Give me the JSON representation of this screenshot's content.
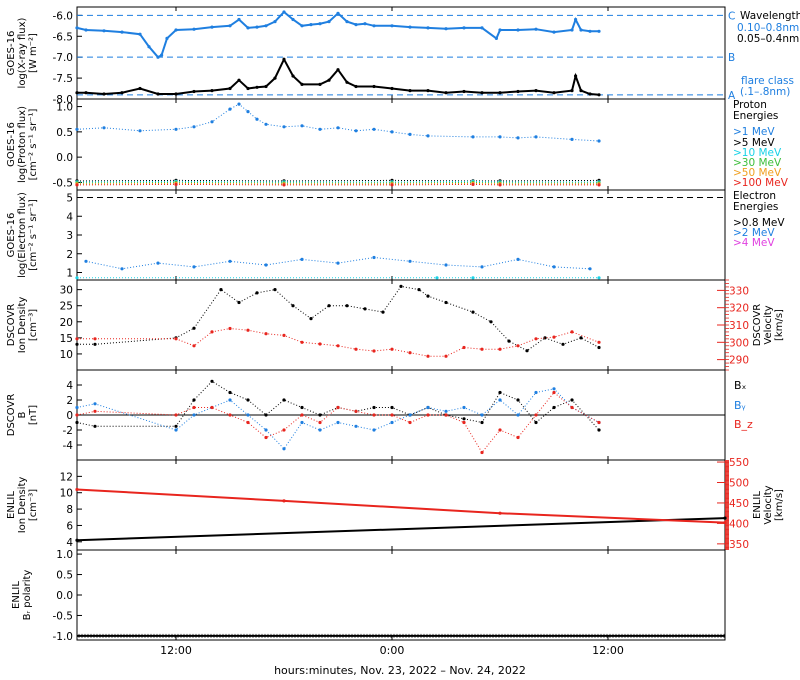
{
  "colors": {
    "black": "#000000",
    "blue": "#1f7fe0",
    "cyan": "#19d2e6",
    "green": "#3cbf3c",
    "orange": "#f0a020",
    "red": "#e8251e",
    "magenta": "#e040e0"
  },
  "x_axis": {
    "title": "hours:minutes, Nov. 23, 2022 – Nov. 24, 2022",
    "xlim": [
      6.5,
      42.5
    ],
    "ticks": [
      {
        "label": "12:00",
        "hour": 12
      },
      {
        "label": "0:00",
        "hour": 24
      },
      {
        "label": "12:00",
        "hour": 36
      }
    ]
  },
  "chart_data": [
    {
      "type": "line",
      "id": "xray",
      "ylabel": [
        "GOES-16",
        "log(X-ray flux)",
        "[W m⁻²]"
      ],
      "ylim": [
        -8.0,
        -5.8
      ],
      "yticks": [
        "-6.0",
        "-6.5",
        "-7.0",
        "-7.5",
        "-8.0"
      ],
      "ytick_values": [
        -6.0,
        -6.5,
        -7.0,
        -7.5,
        -8.0
      ],
      "flare_levels": [
        {
          "label": "C",
          "value": -6.0
        },
        {
          "label": "B",
          "value": -7.0
        },
        {
          "label": "A",
          "value": -7.9
        }
      ],
      "legend": {
        "title": "Wavelength",
        "entries": [
          "0.10–0.8nm",
          "0.05–0.4nm"
        ],
        "note": [
          "flare class",
          "(.1–.8nm)"
        ]
      },
      "series": [
        {
          "name": "0.10–0.8nm",
          "color": "blue",
          "x": [
            6.5,
            7.0,
            8.0,
            9.0,
            10.0,
            10.5,
            11.0,
            11.2,
            11.5,
            12.0,
            13.0,
            14.0,
            15.0,
            15.5,
            16.0,
            16.5,
            17.0,
            17.5,
            18.0,
            18.5,
            19.0,
            19.5,
            20.0,
            20.5,
            21.0,
            21.5,
            22.0,
            22.5,
            23.0,
            24.0,
            25.0,
            26.0,
            27.0,
            28.0,
            29.0,
            29.8,
            30.0,
            31.0,
            32.0,
            33.0,
            34.0,
            34.2,
            34.5,
            35.0,
            35.5
          ],
          "y": [
            -6.3,
            -6.35,
            -6.37,
            -6.4,
            -6.45,
            -6.75,
            -7.0,
            -6.95,
            -6.55,
            -6.35,
            -6.33,
            -6.28,
            -6.25,
            -6.1,
            -6.3,
            -6.28,
            -6.25,
            -6.15,
            -5.92,
            -6.1,
            -6.25,
            -6.22,
            -6.2,
            -6.15,
            -5.95,
            -6.15,
            -6.22,
            -6.2,
            -6.25,
            -6.25,
            -6.28,
            -6.3,
            -6.32,
            -6.3,
            -6.3,
            -6.55,
            -6.35,
            -6.35,
            -6.33,
            -6.4,
            -6.35,
            -6.1,
            -6.35,
            -6.38,
            -6.38
          ]
        },
        {
          "name": "0.05–0.4nm",
          "color": "black",
          "x": [
            6.5,
            7.0,
            8.0,
            9.0,
            10.0,
            11.0,
            12.0,
            13.0,
            14.0,
            15.0,
            15.5,
            16.0,
            16.5,
            17.0,
            17.5,
            18.0,
            18.5,
            19.0,
            20.0,
            20.5,
            21.0,
            21.5,
            22.0,
            23.0,
            24.0,
            25.0,
            26.0,
            27.0,
            28.0,
            29.0,
            30.0,
            31.0,
            32.0,
            33.0,
            34.0,
            34.2,
            34.5,
            35.0,
            35.5
          ],
          "y": [
            -7.85,
            -7.85,
            -7.88,
            -7.85,
            -7.75,
            -7.88,
            -7.88,
            -7.82,
            -7.8,
            -7.75,
            -7.55,
            -7.75,
            -7.72,
            -7.7,
            -7.5,
            -7.05,
            -7.45,
            -7.65,
            -7.65,
            -7.55,
            -7.3,
            -7.6,
            -7.7,
            -7.7,
            -7.75,
            -7.8,
            -7.8,
            -7.85,
            -7.82,
            -7.85,
            -7.85,
            -7.82,
            -7.8,
            -7.85,
            -7.8,
            -7.45,
            -7.8,
            -7.88,
            -7.9
          ]
        }
      ]
    },
    {
      "type": "scatter",
      "id": "proton",
      "ylabel": [
        "GOES-16",
        "log(Proton flux)",
        "[cm⁻² s⁻¹ sr⁻¹]"
      ],
      "ylim": [
        -0.65,
        1.15
      ],
      "yticks": [
        "1.0",
        "0.5",
        "0.0",
        "-0.5"
      ],
      "ytick_values": [
        1.0,
        0.5,
        0.0,
        -0.5
      ],
      "legend": {
        "title": [
          "Proton",
          "Energies"
        ]
      },
      "series": [
        {
          "name": ">1 MeV",
          "color": "blue",
          "x": [
            6.5,
            8.0,
            10.0,
            12.0,
            13.0,
            14.0,
            15.0,
            15.5,
            16.0,
            16.5,
            17.0,
            18.0,
            19.0,
            20.0,
            21.0,
            22.0,
            23.0,
            24.0,
            25.0,
            26.0,
            28.5,
            30.0,
            31.0,
            32.0,
            34.0,
            35.5
          ],
          "y": [
            0.55,
            0.58,
            0.52,
            0.55,
            0.6,
            0.7,
            0.95,
            1.05,
            0.9,
            0.75,
            0.65,
            0.6,
            0.62,
            0.55,
            0.58,
            0.52,
            0.55,
            0.5,
            0.45,
            0.42,
            0.4,
            0.4,
            0.38,
            0.4,
            0.35,
            0.32
          ]
        },
        {
          "name": ">5 MeV",
          "color": "black",
          "x": [
            6.5,
            12.0,
            18.0,
            24.0,
            28.5,
            30.0,
            35.5
          ],
          "y": [
            -0.47,
            -0.46,
            -0.47,
            -0.46,
            -0.47,
            -0.47,
            -0.46
          ]
        },
        {
          "name": ">10 MeV",
          "color": "cyan",
          "x": [
            6.5,
            12.0,
            18.0,
            24.0,
            28.5,
            30.0,
            35.5
          ],
          "y": [
            -0.49,
            -0.48,
            -0.49,
            -0.49,
            -0.48,
            -0.49,
            -0.49
          ]
        },
        {
          "name": ">30 MeV",
          "color": "green",
          "x": [
            6.5,
            12.0,
            18.0,
            24.0,
            28.5,
            30.0,
            35.5
          ],
          "y": [
            -0.51,
            -0.5,
            -0.51,
            -0.51,
            -0.5,
            -0.51,
            -0.51
          ]
        },
        {
          "name": ">50 MeV",
          "color": "orange",
          "x": [
            6.5,
            12.0,
            18.0,
            24.0,
            28.5,
            30.0,
            35.5
          ],
          "y": [
            -0.53,
            -0.52,
            -0.53,
            -0.53,
            -0.52,
            -0.53,
            -0.53
          ]
        },
        {
          "name": ">100 MeV",
          "color": "red",
          "x": [
            6.5,
            12.0,
            18.0,
            24.0,
            28.5,
            30.0,
            35.5
          ],
          "y": [
            -0.55,
            -0.54,
            -0.55,
            -0.55,
            -0.54,
            -0.55,
            -0.55
          ]
        }
      ]
    },
    {
      "type": "scatter",
      "id": "electron",
      "ylabel": [
        "GOES-16",
        "log(Electron flux)",
        "[cm⁻² s⁻¹ sr⁻¹]"
      ],
      "ylim": [
        0.6,
        5.4
      ],
      "yticks": [
        "5",
        "4",
        "3",
        "2",
        "1"
      ],
      "ytick_values": [
        5,
        4,
        3,
        2,
        1
      ],
      "reference_line": 5.0,
      "legend": {
        "title": [
          "Electron",
          "Energies"
        ]
      },
      "series": [
        {
          "name": ">0.8 MeV",
          "color": "black",
          "x": [],
          "y": []
        },
        {
          "name": ">2 MeV",
          "color": "blue",
          "x": [
            7.0,
            9.0,
            11.0,
            13.0,
            15.0,
            17.0,
            19.0,
            21.0,
            23.0,
            25.0,
            27.0,
            29.0,
            31.0,
            33.0,
            35.0
          ],
          "y": [
            1.6,
            1.2,
            1.5,
            1.3,
            1.6,
            1.4,
            1.7,
            1.5,
            1.8,
            1.6,
            1.4,
            1.3,
            1.7,
            1.3,
            1.2
          ]
        },
        {
          "name": ">4 MeV",
          "color": "magenta",
          "x": [],
          "y": []
        },
        {
          "name": "floor",
          "color": "cyan",
          "x": [
            6.5,
            26.5,
            28.5,
            35.5
          ],
          "y": [
            0.72,
            0.72,
            0.72,
            0.72
          ]
        }
      ]
    },
    {
      "type": "scatter",
      "id": "dscovr_plasma",
      "ylabel": [
        "DSCOVR",
        "Ion Density",
        "[cm⁻³]"
      ],
      "ylim": [
        5,
        33
      ],
      "yticks": [
        "30",
        "25",
        "20",
        "15",
        "10"
      ],
      "ytick_values": [
        30,
        25,
        20,
        15,
        10
      ],
      "ylabel_right": [
        "DSCOVR",
        "Velocity",
        "[km/s]"
      ],
      "ylim_right": [
        284,
        336
      ],
      "yticks_right": [
        "330",
        "320",
        "310",
        "300",
        "290"
      ],
      "ytick_values_right": [
        330,
        320,
        310,
        300,
        290
      ],
      "series": [
        {
          "name": "density",
          "color": "black",
          "axis": "left",
          "x": [
            6.5,
            7.5,
            12.0,
            13.0,
            14.5,
            15.5,
            16.5,
            17.5,
            18.5,
            19.5,
            20.5,
            21.5,
            22.5,
            23.5,
            24.5,
            25.5,
            26.0,
            27.0,
            28.5,
            29.5,
            30.5,
            31.5,
            32.5,
            33.5,
            34.5,
            35.5
          ],
          "y": [
            13,
            13,
            15,
            18,
            30,
            26,
            29,
            30,
            25,
            21,
            25,
            25,
            24,
            23,
            31,
            30,
            28,
            26,
            23,
            20,
            14,
            11,
            15,
            13,
            15,
            12
          ]
        },
        {
          "name": "velocity",
          "color": "red",
          "axis": "right",
          "x": [
            6.5,
            7.5,
            12.0,
            13.0,
            14.0,
            15.0,
            16.0,
            17.0,
            18.0,
            19.0,
            20.0,
            21.0,
            22.0,
            23.0,
            24.0,
            25.0,
            26.0,
            27.0,
            28.0,
            29.0,
            30.0,
            31.0,
            32.0,
            33.0,
            34.0,
            35.5
          ],
          "y": [
            302,
            302,
            302,
            298,
            306,
            308,
            307,
            305,
            304,
            300,
            299,
            298,
            296,
            295,
            296,
            294,
            292,
            292,
            297,
            296,
            296,
            298,
            302,
            303,
            306,
            300
          ]
        }
      ]
    },
    {
      "type": "scatter",
      "id": "dscovr_mag",
      "ylabel": [
        "DSCOVR",
        "B",
        "[nT]"
      ],
      "ylim": [
        -6,
        6
      ],
      "yticks": [
        "4",
        "2",
        "0",
        "-2",
        "-4"
      ],
      "ytick_values": [
        4,
        2,
        0,
        -2,
        -4
      ],
      "zero_line": true,
      "legend": {
        "entries": [
          "Bₓ",
          "Bᵧ",
          "B_z"
        ]
      },
      "series": [
        {
          "name": "Bₓ",
          "color": "black",
          "x": [
            6.5,
            7.5,
            12.0,
            13.0,
            14.0,
            15.0,
            16.0,
            17.0,
            18.0,
            19.0,
            20.0,
            21.0,
            22.0,
            23.0,
            24.0,
            25.0,
            26.0,
            27.0,
            28.0,
            29.0,
            30.0,
            31.0,
            32.0,
            33.0,
            34.0,
            35.5
          ],
          "y": [
            -1,
            -1.5,
            -1.5,
            2,
            4.5,
            3,
            2,
            0,
            2,
            1,
            0,
            1,
            0.5,
            1,
            1,
            0,
            1,
            0,
            -0.5,
            -1,
            3,
            2,
            -1,
            1,
            2,
            -2
          ]
        },
        {
          "name": "Bᵧ",
          "color": "blue",
          "x": [
            6.5,
            7.5,
            12.0,
            13.0,
            14.0,
            15.0,
            16.0,
            17.0,
            18.0,
            19.0,
            20.0,
            21.0,
            22.0,
            23.0,
            24.0,
            25.0,
            26.0,
            27.0,
            28.0,
            29.0,
            30.0,
            31.0,
            32.0,
            33.0,
            34.0,
            35.5
          ],
          "y": [
            1,
            1.5,
            -2,
            0,
            1,
            2,
            0,
            -2,
            -4.5,
            -1,
            -2,
            -1,
            -1.5,
            -2,
            -1,
            0,
            1,
            0.5,
            1,
            0,
            2,
            0,
            3,
            3.5,
            1,
            -1
          ]
        },
        {
          "name": "B_z",
          "color": "red",
          "x": [
            6.5,
            7.5,
            12.0,
            13.0,
            14.0,
            15.0,
            16.0,
            17.0,
            18.0,
            19.0,
            20.0,
            21.0,
            22.0,
            23.0,
            24.0,
            25.0,
            26.0,
            27.0,
            28.0,
            29.0,
            30.0,
            31.0,
            32.0,
            33.0,
            34.0,
            35.5
          ],
          "y": [
            0,
            0.5,
            0,
            1,
            1,
            0,
            -1,
            -3,
            -2,
            0,
            -1,
            1,
            0.5,
            0,
            0,
            -1,
            0,
            0,
            -1,
            -5,
            -2,
            -3,
            0,
            3,
            1,
            -1
          ]
        }
      ]
    },
    {
      "type": "line",
      "id": "enlil_plasma",
      "ylabel": [
        "ENLIL",
        "Ion Density",
        "[cm⁻³]"
      ],
      "ylim": [
        3,
        14
      ],
      "yticks": [
        "12",
        "10",
        "8",
        "6",
        "4"
      ],
      "ytick_values": [
        12,
        10,
        8,
        6,
        4
      ],
      "ylabel_right": [
        "ENLIL",
        "Velocity",
        "[km/s]"
      ],
      "ylim_right": [
        335,
        555
      ],
      "yticks_right": [
        "550",
        "500",
        "450",
        "400",
        "350"
      ],
      "ytick_values_right": [
        550,
        500,
        450,
        400,
        350
      ],
      "series": [
        {
          "name": "density",
          "color": "black",
          "axis": "left",
          "x": [
            6.5,
            42.5
          ],
          "y": [
            4.2,
            6.9
          ]
        },
        {
          "name": "velocity",
          "color": "red",
          "axis": "right",
          "x": [
            6.5,
            18.0,
            30.0,
            42.5
          ],
          "y": [
            483,
            455,
            425,
            402
          ]
        }
      ]
    },
    {
      "type": "line",
      "id": "enlil_polarity",
      "ylabel": [
        "ENLIL",
        "Bᵣ polarity"
      ],
      "ylim": [
        -1.1,
        1.1
      ],
      "yticks": [
        "1.0",
        "0.5",
        "0.0",
        "-0.5",
        "-1.0"
      ],
      "ytick_values": [
        1.0,
        0.5,
        0.0,
        -0.5,
        -1.0
      ],
      "series": [
        {
          "name": "polarity",
          "color": "black",
          "x": [
            6.5,
            42.5
          ],
          "y": [
            -1.0,
            -1.0
          ]
        }
      ]
    }
  ]
}
